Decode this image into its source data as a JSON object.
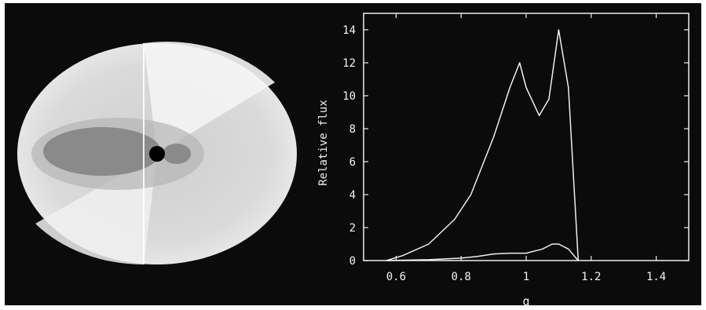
{
  "chart_data": [
    {
      "type": "image",
      "description_ref": "disk-image",
      "colors": {
        "background": "#0b0b0b",
        "disk_outer": "#d9d9d9",
        "disk_inner": "#8a8a8a",
        "center": "#000000"
      }
    },
    {
      "type": "line",
      "xlabel": "g",
      "ylabel": "Relative flux",
      "xlim": [
        0.5,
        1.5
      ],
      "ylim": [
        0,
        15
      ],
      "xticks": [
        0.6,
        0.8,
        1.0,
        1.2,
        1.4
      ],
      "xtick_labels": [
        "0.6",
        "0.8",
        "1",
        "1.2",
        "1.4"
      ],
      "yticks": [
        0,
        2,
        4,
        6,
        8,
        10,
        12,
        14
      ],
      "ytick_labels": [
        "0",
        "2",
        "4",
        "6",
        "8",
        "10",
        "12",
        "14"
      ],
      "grid": false,
      "colors": {
        "line": "#eeeeee",
        "axes": "#eeeeee"
      },
      "series": [
        {
          "x": [
            0.57,
            0.62,
            0.7,
            0.78,
            0.83,
            0.9,
            0.95,
            0.98,
            1.0,
            1.04,
            1.07,
            1.1,
            1.13,
            1.16,
            1.16
          ],
          "values": [
            0.0,
            0.3,
            1.0,
            2.5,
            4.0,
            7.5,
            10.5,
            12.0,
            10.5,
            8.8,
            9.8,
            14.0,
            10.5,
            0.1,
            0.0
          ]
        },
        {
          "x": [
            0.57,
            0.7,
            0.8,
            0.85,
            0.9,
            0.95,
            1.0,
            1.05,
            1.08,
            1.1,
            1.13,
            1.16
          ],
          "values": [
            0.0,
            0.05,
            0.15,
            0.25,
            0.4,
            0.45,
            0.45,
            0.7,
            1.0,
            1.0,
            0.7,
            0.0
          ]
        }
      ]
    }
  ]
}
